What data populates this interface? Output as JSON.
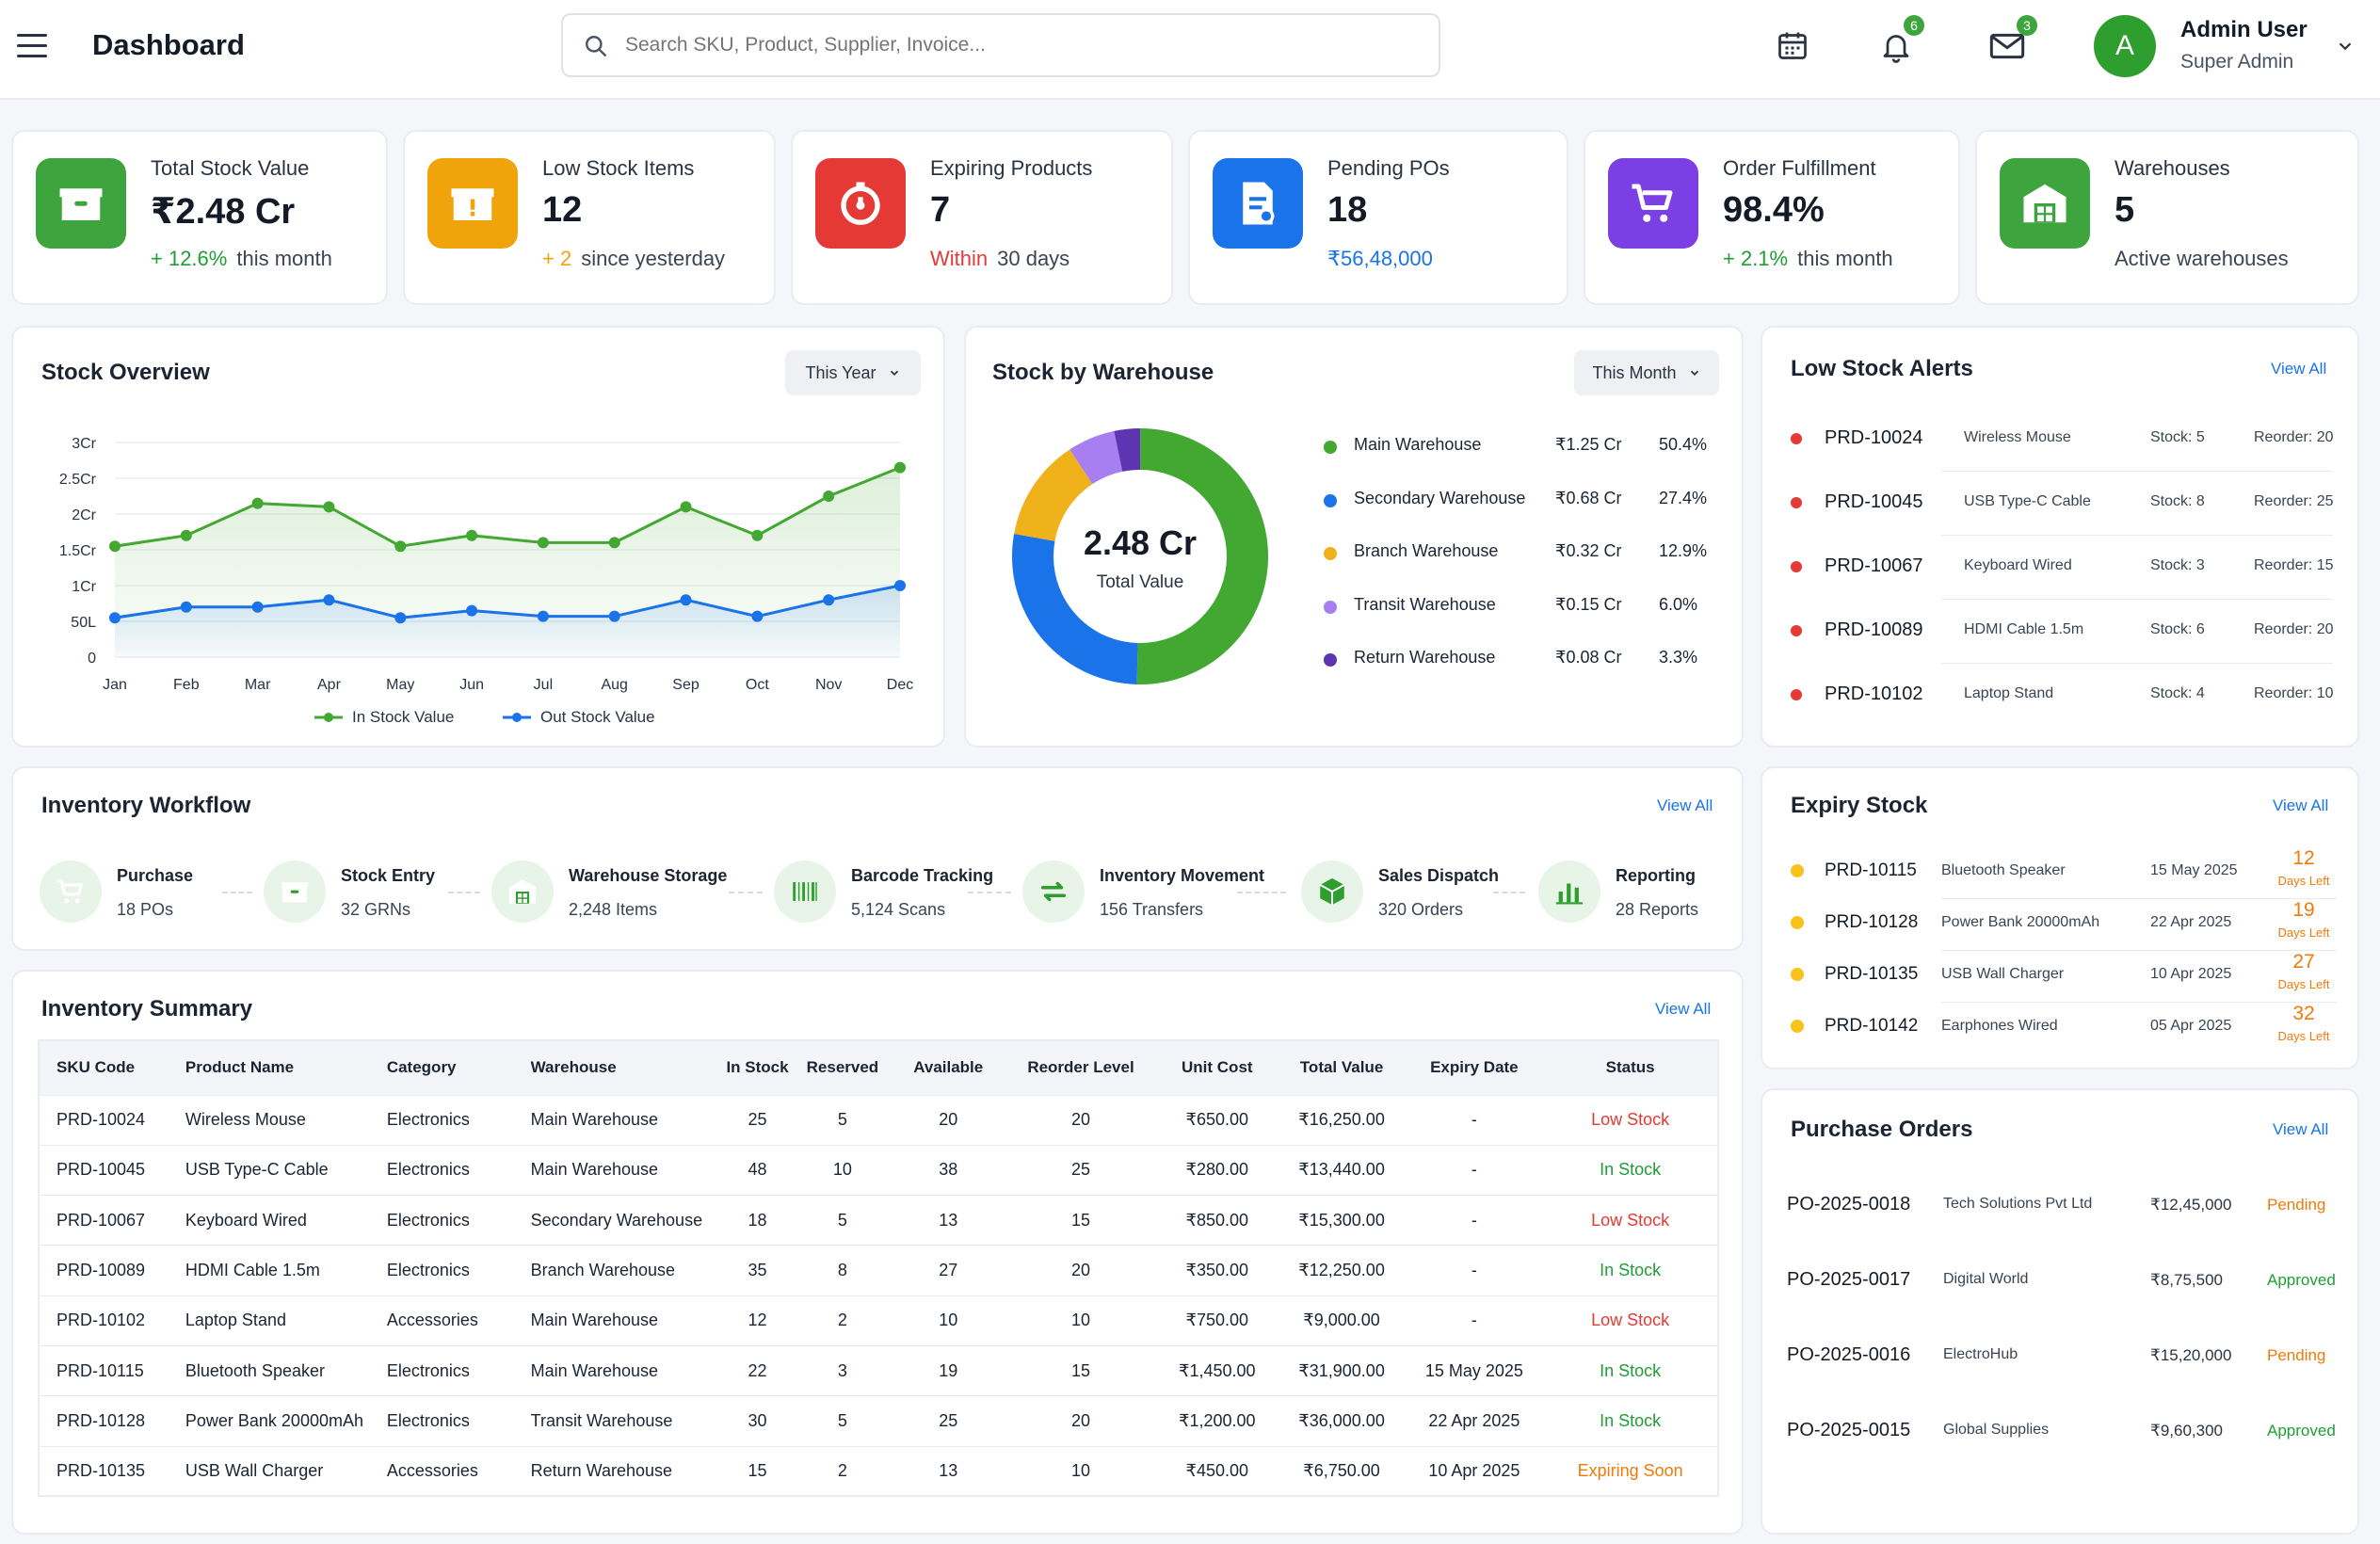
{
  "header": {
    "title": "Dashboard",
    "search_placeholder": "Search SKU, Product, Supplier, Invoice...",
    "notif_count": "6",
    "mail_count": "3",
    "user_initial": "A",
    "user_name": "Admin User",
    "user_role": "Super Admin"
  },
  "kpis": [
    {
      "label": "Total Stock Value",
      "value": "₹2.48 Cr",
      "delta": "+ 12.6%",
      "suffix": "this month",
      "icon": "box-icon",
      "color": "#3ea53e"
    },
    {
      "label": "Low Stock Items",
      "value": "12",
      "delta": "+ 2",
      "suffix": "since yesterday",
      "icon": "alert-box-icon",
      "color": "#f0a30a"
    },
    {
      "label": "Expiring Products",
      "value": "7",
      "delta": "Within",
      "suffix": "30 days",
      "icon": "timer-icon",
      "color": "#e53935"
    },
    {
      "label": "Pending POs",
      "value": "18",
      "delta": "₹56,48,000",
      "suffix": "",
      "icon": "document-icon",
      "color": "#1a73e8"
    },
    {
      "label": "Order Fulfillment",
      "value": "98.4%",
      "delta": "+ 2.1%",
      "suffix": "this month",
      "icon": "cart-icon",
      "color": "#7b3fe4"
    },
    {
      "label": "Warehouses",
      "value": "5",
      "delta": "",
      "suffix": "Active warehouses",
      "icon": "warehouse-icon",
      "color": "#3ea53e"
    }
  ],
  "stock_overview": {
    "title": "Stock Overview",
    "filter": "This Year",
    "legend_in": "In Stock Value",
    "legend_out": "Out Stock Value"
  },
  "chart_data": {
    "type": "area",
    "categories": [
      "Jan",
      "Feb",
      "Mar",
      "Apr",
      "May",
      "Jun",
      "Jul",
      "Aug",
      "Sep",
      "Oct",
      "Nov",
      "Dec"
    ],
    "y_ticks": [
      "0",
      "50L",
      "1Cr",
      "1.5Cr",
      "2Cr",
      "2.5Cr",
      "3Cr"
    ],
    "ylim": [
      0,
      3
    ],
    "series": [
      {
        "name": "In Stock Value",
        "color": "#43a832",
        "values": [
          1.55,
          1.7,
          2.15,
          2.1,
          1.55,
          1.7,
          1.6,
          1.6,
          2.1,
          1.7,
          2.25,
          2.65
        ]
      },
      {
        "name": "Out Stock Value",
        "color": "#1a73e8",
        "values": [
          0.55,
          0.7,
          0.7,
          0.8,
          0.55,
          0.65,
          0.57,
          0.57,
          0.8,
          0.57,
          0.8,
          1.0
        ]
      }
    ],
    "grid": true,
    "legend": "bottom"
  },
  "warehouse": {
    "title": "Stock by Warehouse",
    "filter": "This Month",
    "center_value": "2.48 Cr",
    "center_label": "Total Value",
    "items": [
      {
        "name": "Main Warehouse",
        "value": "₹1.25 Cr",
        "pct": "50.4%",
        "share": 50.4,
        "color": "#43a832"
      },
      {
        "name": "Secondary Warehouse",
        "value": "₹0.68 Cr",
        "pct": "27.4%",
        "share": 27.4,
        "color": "#1a73e8"
      },
      {
        "name": "Branch Warehouse",
        "value": "₹0.32 Cr",
        "pct": "12.9%",
        "share": 12.9,
        "color": "#f0b21a"
      },
      {
        "name": "Transit Warehouse",
        "value": "₹0.15 Cr",
        "pct": "6.0%",
        "share": 6.0,
        "color": "#a77ff0"
      },
      {
        "name": "Return Warehouse",
        "value": "₹0.08 Cr",
        "pct": "3.3%",
        "share": 3.3,
        "color": "#5e35b1"
      }
    ]
  },
  "low_stock": {
    "title": "Low Stock Alerts",
    "view_all": "View All",
    "items": [
      {
        "sku": "PRD-10024",
        "name": "Wireless Mouse",
        "stock": "Stock: 5",
        "reorder": "Reorder: 20"
      },
      {
        "sku": "PRD-10045",
        "name": "USB Type-C Cable",
        "stock": "Stock: 8",
        "reorder": "Reorder: 25"
      },
      {
        "sku": "PRD-10067",
        "name": "Keyboard Wired",
        "stock": "Stock: 3",
        "reorder": "Reorder: 15"
      },
      {
        "sku": "PRD-10089",
        "name": "HDMI Cable 1.5m",
        "stock": "Stock: 6",
        "reorder": "Reorder: 20"
      },
      {
        "sku": "PRD-10102",
        "name": "Laptop Stand",
        "stock": "Stock: 4",
        "reorder": "Reorder: 10"
      }
    ]
  },
  "workflow": {
    "title": "Inventory Workflow",
    "view_all": "View All",
    "steps": [
      {
        "title": "Purchase",
        "sub": "18 POs",
        "icon": "cart-icon"
      },
      {
        "title": "Stock Entry",
        "sub": "32 GRNs",
        "icon": "box-icon"
      },
      {
        "title": "Warehouse Storage",
        "sub": "2,248 Items",
        "icon": "warehouse-icon"
      },
      {
        "title": "Barcode Tracking",
        "sub": "5,124 Scans",
        "icon": "barcode-icon"
      },
      {
        "title": "Inventory Movement",
        "sub": "156 Transfers",
        "icon": "transfer-icon"
      },
      {
        "title": "Sales Dispatch",
        "sub": "320 Orders",
        "icon": "package-icon"
      },
      {
        "title": "Reporting",
        "sub": "28 Reports",
        "icon": "bar-chart-icon"
      }
    ]
  },
  "expiry": {
    "title": "Expiry Stock",
    "view_all": "View All",
    "days_left": "Days Left",
    "items": [
      {
        "sku": "PRD-10115",
        "name": "Bluetooth Speaker",
        "date": "15 May 2025",
        "days": "12"
      },
      {
        "sku": "PRD-10128",
        "name": "Power Bank 20000mAh",
        "date": "22 Apr 2025",
        "days": "19"
      },
      {
        "sku": "PRD-10135",
        "name": "USB Wall Charger",
        "date": "10 Apr 2025",
        "days": "27"
      },
      {
        "sku": "PRD-10142",
        "name": "Earphones Wired",
        "date": "05 Apr 2025",
        "days": "32"
      }
    ]
  },
  "summary": {
    "title": "Inventory Summary",
    "view_all": "View All",
    "columns": [
      "SKU Code",
      "Product Name",
      "Category",
      "Warehouse",
      "In Stock",
      "Reserved",
      "Available",
      "Reorder Level",
      "Unit Cost",
      "Total Value",
      "Expiry Date",
      "Status"
    ],
    "rows": [
      [
        "PRD-10024",
        "Wireless Mouse",
        "Electronics",
        "Main Warehouse",
        "25",
        "5",
        "20",
        "20",
        "₹650.00",
        "₹16,250.00",
        "-",
        "Low Stock"
      ],
      [
        "PRD-10045",
        "USB Type-C Cable",
        "Electronics",
        "Main Warehouse",
        "48",
        "10",
        "38",
        "25",
        "₹280.00",
        "₹13,440.00",
        "-",
        "In Stock"
      ],
      [
        "PRD-10067",
        "Keyboard Wired",
        "Electronics",
        "Secondary Warehouse",
        "18",
        "5",
        "13",
        "15",
        "₹850.00",
        "₹15,300.00",
        "-",
        "Low Stock"
      ],
      [
        "PRD-10089",
        "HDMI Cable 1.5m",
        "Electronics",
        "Branch Warehouse",
        "35",
        "8",
        "27",
        "20",
        "₹350.00",
        "₹12,250.00",
        "-",
        "In Stock"
      ],
      [
        "PRD-10102",
        "Laptop Stand",
        "Accessories",
        "Main Warehouse",
        "12",
        "2",
        "10",
        "10",
        "₹750.00",
        "₹9,000.00",
        "-",
        "Low Stock"
      ],
      [
        "PRD-10115",
        "Bluetooth Speaker",
        "Electronics",
        "Main Warehouse",
        "22",
        "3",
        "19",
        "15",
        "₹1,450.00",
        "₹31,900.00",
        "15 May 2025",
        "In Stock"
      ],
      [
        "PRD-10128",
        "Power Bank 20000mAh",
        "Electronics",
        "Transit Warehouse",
        "30",
        "5",
        "25",
        "20",
        "₹1,200.00",
        "₹36,000.00",
        "22 Apr 2025",
        "In Stock"
      ],
      [
        "PRD-10135",
        "USB Wall Charger",
        "Accessories",
        "Return Warehouse",
        "15",
        "2",
        "13",
        "10",
        "₹450.00",
        "₹6,750.00",
        "10 Apr 2025",
        "Expiring Soon"
      ]
    ]
  },
  "purchase_orders": {
    "title": "Purchase Orders",
    "view_all": "View All",
    "items": [
      {
        "po": "PO-2025-0018",
        "supplier": "Tech Solutions Pvt Ltd",
        "amount": "₹12,45,000",
        "status": "Pending"
      },
      {
        "po": "PO-2025-0017",
        "supplier": "Digital World",
        "amount": "₹8,75,500",
        "status": "Approved"
      },
      {
        "po": "PO-2025-0016",
        "supplier": "ElectroHub",
        "amount": "₹15,20,000",
        "status": "Pending"
      },
      {
        "po": "PO-2025-0015",
        "supplier": "Global Supplies",
        "amount": "₹9,60,300",
        "status": "Approved"
      }
    ]
  },
  "colors": {
    "green": "#1f9d36",
    "red": "#e53935",
    "orange": "#f07a0a",
    "blue": "#1a73e8"
  }
}
